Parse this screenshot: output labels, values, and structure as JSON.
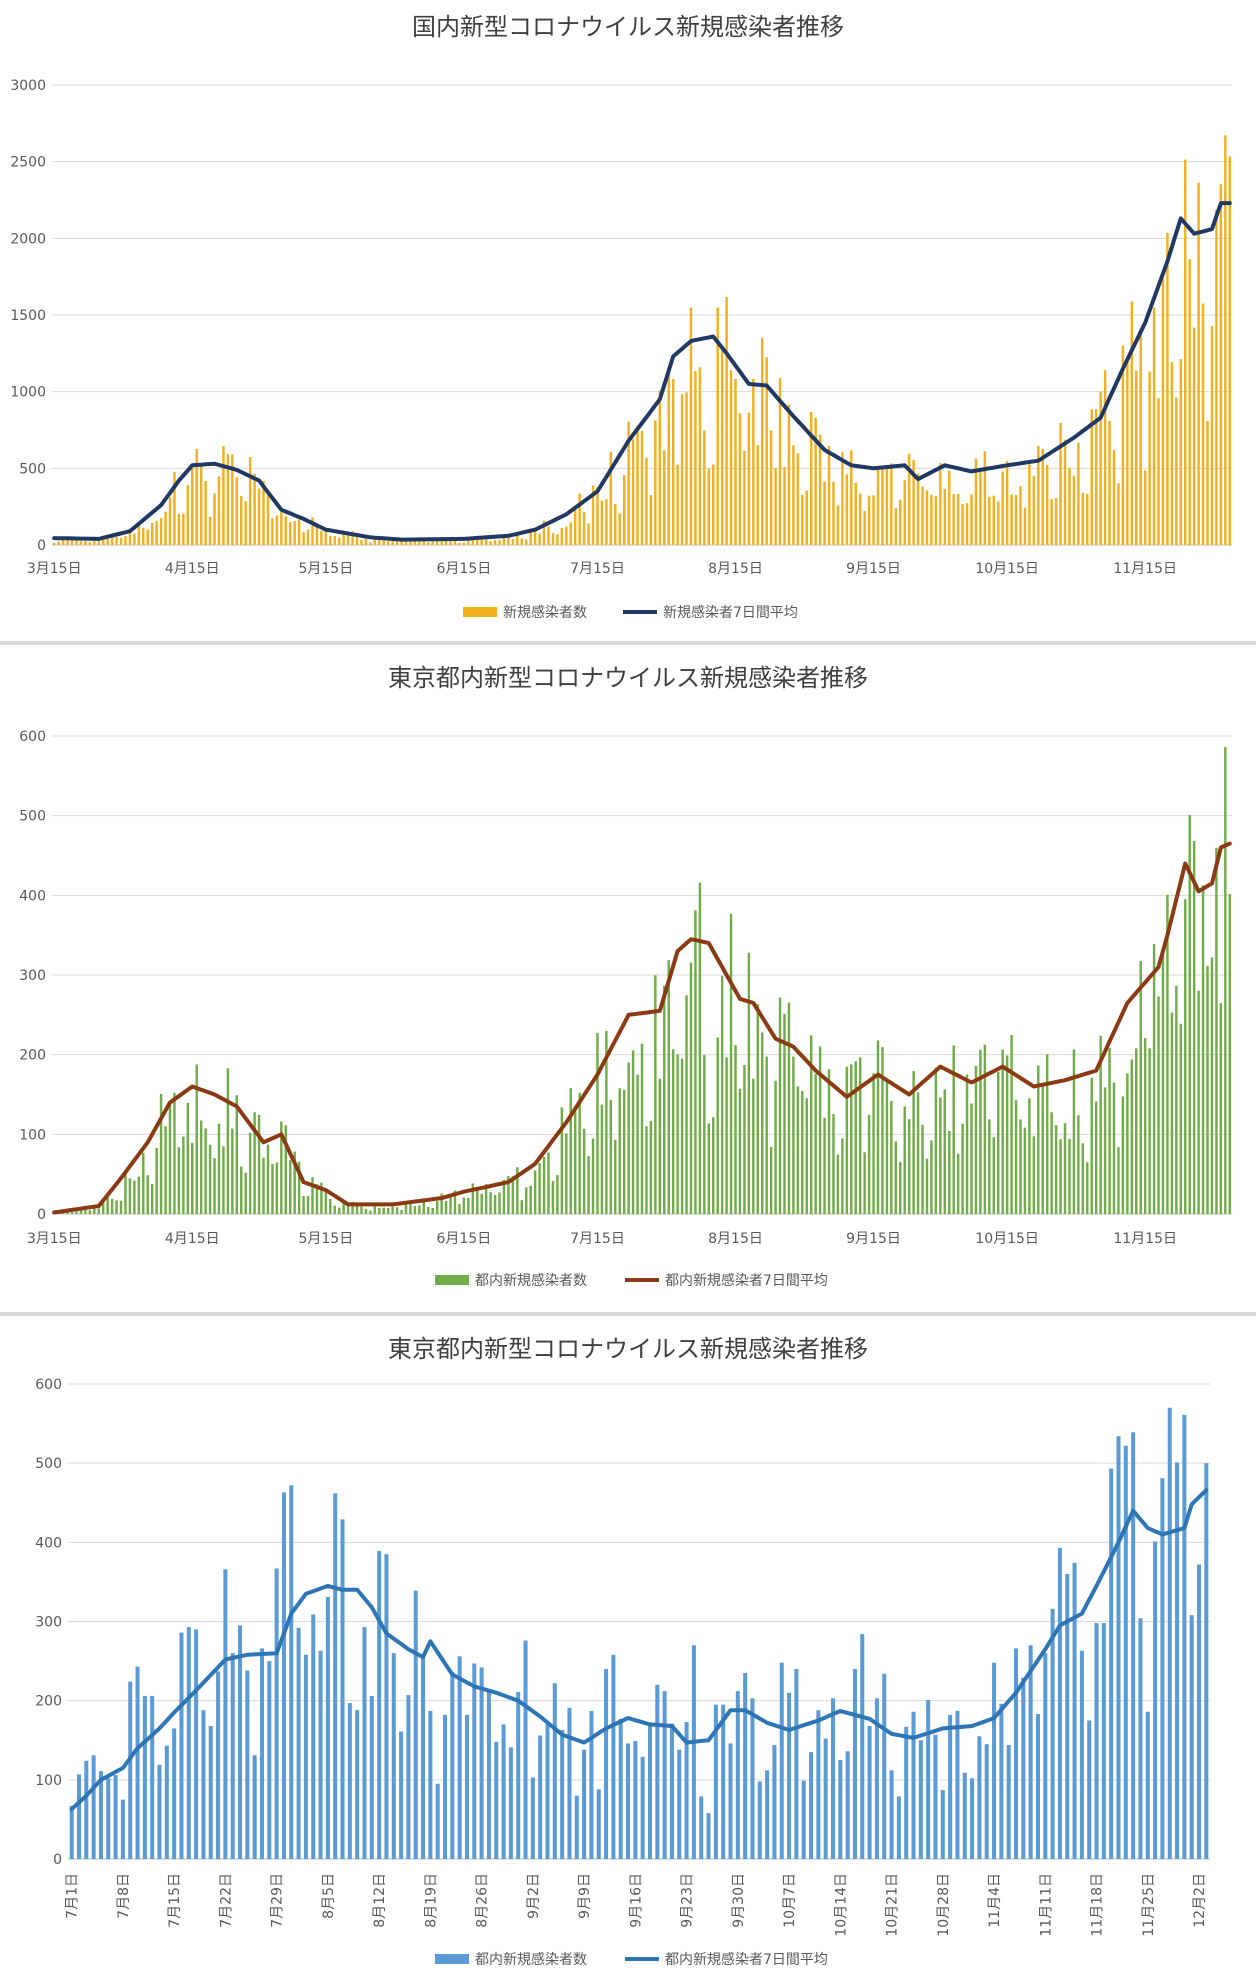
{
  "charts": [
    {
      "title": "国内新型コロナウイルス新規感染者推移",
      "legend": [
        "新規感染者数",
        "新規感染者7日間平均"
      ],
      "bar_color": "#F2B01E",
      "line_color": "#1F3864",
      "ylim": [
        0,
        3000
      ],
      "yticks": [
        0,
        500,
        1000,
        1500,
        2000,
        2500,
        3000
      ],
      "xticks": [
        "3月15日",
        "4月15日",
        "5月15日",
        "6月15日",
        "7月15日",
        "8月15日",
        "9月15日",
        "10月15日",
        "11月15日"
      ]
    },
    {
      "title": "東京都内新型コロナウイルス新規感染者推移",
      "legend": [
        "都内新規感染者数",
        "都内新規感染者7日間平均"
      ],
      "bar_color": "#70AD47",
      "line_color": "#8B3A14",
      "ylim": [
        0,
        600
      ],
      "yticks": [
        0,
        100,
        200,
        300,
        400,
        500,
        600
      ],
      "xticks": [
        "3月15日",
        "4月15日",
        "5月15日",
        "6月15日",
        "7月15日",
        "8月15日",
        "9月15日",
        "10月15日",
        "11月15日"
      ]
    },
    {
      "title": "東京都内新型コロナウイルス新規感染者推移",
      "legend": [
        "都内新規感染者数",
        "都内新規感染者7日間平均"
      ],
      "bar_color": "#5B9BD5",
      "line_color": "#2E75B6",
      "ylim": [
        0,
        600
      ],
      "yticks": [
        0,
        100,
        200,
        300,
        400,
        500,
        600
      ],
      "xticks": [
        "7月1日",
        "7月8日",
        "7月15日",
        "7月22日",
        "7月29日",
        "8月5日",
        "8月12日",
        "8月19日",
        "8月26日",
        "9月2日",
        "9月9日",
        "9月16日",
        "9月23日",
        "9月30日",
        "10月7日",
        "10月14日",
        "10月21日",
        "10月28日",
        "11月4日",
        "11月11日",
        "11月18日",
        "11月25日",
        "12月2日"
      ]
    }
  ],
  "chart_data": [
    {
      "type": "bar+line",
      "title": "国内新型コロナウイルス新規感染者推移",
      "ylim": [
        0,
        3000
      ],
      "x_range": [
        "3月15日",
        "12月4日"
      ],
      "series": [
        {
          "name": "新規感染者数",
          "type": "bar",
          "note": "daily values"
        },
        {
          "name": "新規感染者7日間平均",
          "type": "line",
          "points": [
            [
              "3月15日",
              45
            ],
            [
              "3月25日",
              40
            ],
            [
              "4月1日",
              90
            ],
            [
              "4月8日",
              260
            ],
            [
              "4月12日",
              420
            ],
            [
              "4月15日",
              520
            ],
            [
              "4月20日",
              530
            ],
            [
              "4月25日",
              490
            ],
            [
              "4月30日",
              420
            ],
            [
              "5月5日",
              230
            ],
            [
              "5月10日",
              170
            ],
            [
              "5月15日",
              100
            ],
            [
              "5月25日",
              50
            ],
            [
              "6月1日",
              35
            ],
            [
              "6月15日",
              40
            ],
            [
              "6月25日",
              60
            ],
            [
              "7月1日",
              100
            ],
            [
              "7月8日",
              200
            ],
            [
              "7月15日",
              350
            ],
            [
              "7月22日",
              680
            ],
            [
              "7月29日",
              950
            ],
            [
              "8月1日",
              1230
            ],
            [
              "8月5日",
              1330
            ],
            [
              "8月10日",
              1360
            ],
            [
              "8月13日",
              1250
            ],
            [
              "8月18日",
              1050
            ],
            [
              "8月22日",
              1040
            ],
            [
              "8月28日",
              840
            ],
            [
              "9月4日",
              620
            ],
            [
              "9月10日",
              520
            ],
            [
              "9月15日",
              500
            ],
            [
              "9月22日",
              520
            ],
            [
              "9月25日",
              430
            ],
            [
              "10月1日",
              520
            ],
            [
              "10月7日",
              480
            ],
            [
              "10月15日",
              520
            ],
            [
              "10月22日",
              550
            ],
            [
              "10月30日",
              700
            ],
            [
              "11月5日",
              830
            ],
            [
              "11月10日",
              1150
            ],
            [
              "11月15日",
              1450
            ],
            [
              "11月20日",
              1850
            ],
            [
              "11月23日",
              2130
            ],
            [
              "11月26日",
              2030
            ],
            [
              "11月30日",
              2060
            ],
            [
              "12月2日",
              2230
            ],
            [
              "12月4日",
              2230
            ]
          ]
        }
      ]
    },
    {
      "type": "bar+line",
      "title": "東京都内新型コロナウイルス新規感染者推移",
      "ylim": [
        0,
        600
      ],
      "x_range": [
        "3月15日",
        "12月4日"
      ],
      "series": [
        {
          "name": "都内新規感染者数",
          "type": "bar",
          "note": "daily values"
        },
        {
          "name": "都内新規感染者7日間平均",
          "type": "line",
          "points": [
            [
              "3月15日",
              2
            ],
            [
              "3月25日",
              10
            ],
            [
              "3月30日",
              45
            ],
            [
              "4月5日",
              90
            ],
            [
              "4月10日",
              140
            ],
            [
              "4月15日",
              160
            ],
            [
              "4月20日",
              150
            ],
            [
              "4月25日",
              135
            ],
            [
              "5月1日",
              90
            ],
            [
              "5月5日",
              100
            ],
            [
              "5月10日",
              40
            ],
            [
              "5月15日",
              30
            ],
            [
              "5月20日",
              12
            ],
            [
              "5月30日",
              12
            ],
            [
              "6月10日",
              20
            ],
            [
              "6月15日",
              28
            ],
            [
              "6月25日",
              40
            ],
            [
              "7月1日",
              63
            ],
            [
              "7月8日",
              115
            ],
            [
              "7月15日",
              175
            ],
            [
              "7月22日",
              250
            ],
            [
              "7月29日",
              255
            ],
            [
              "8月2日",
              330
            ],
            [
              "8月5日",
              345
            ],
            [
              "8月9日",
              340
            ],
            [
              "8月12日",
              310
            ],
            [
              "8月16日",
              270
            ],
            [
              "8月19日",
              265
            ],
            [
              "8月24日",
              220
            ],
            [
              "8月28日",
              210
            ],
            [
              "9月2日",
              180
            ],
            [
              "9月9日",
              147
            ],
            [
              "9月16日",
              175
            ],
            [
              "9月23日",
              150
            ],
            [
              "9月30日",
              185
            ],
            [
              "10月7日",
              165
            ],
            [
              "10月14日",
              185
            ],
            [
              "10月21日",
              160
            ],
            [
              "10月28日",
              168
            ],
            [
              "11月4日",
              180
            ],
            [
              "11月11日",
              265
            ],
            [
              "11月18日",
              310
            ],
            [
              "11月20日",
              350
            ],
            [
              "11月24日",
              440
            ],
            [
              "11月27日",
              405
            ],
            [
              "11月30日",
              415
            ],
            [
              "12月2日",
              460
            ],
            [
              "12月4日",
              465
            ]
          ]
        }
      ]
    },
    {
      "type": "bar+line",
      "title": "東京都内新型コロナウイルス新規感染者推移",
      "ylim": [
        0,
        600
      ],
      "x_range": [
        "7月1日",
        "12月3日"
      ],
      "series": [
        {
          "name": "都内新規感染者数",
          "type": "bar",
          "values": [
            67,
            107,
            124,
            131,
            111,
            102,
            106,
            75,
            224,
            243,
            206,
            206,
            119,
            143,
            165,
            286,
            293,
            290,
            188,
            168,
            237,
            366,
            260,
            295,
            238,
            131,
            266,
            250,
            367,
            463,
            472,
            292,
            258,
            309,
            263,
            331,
            462,
            429,
            197,
            188,
            293,
            206,
            389,
            385,
            260,
            161,
            207,
            339,
            258,
            187,
            95,
            182,
            236,
            256,
            182,
            247,
            242,
            212,
            148,
            170,
            141,
            211,
            276,
            103,
            156,
            170,
            222,
            163,
            191,
            80,
            138,
            187,
            88,
            240,
            258,
            177,
            146,
            149,
            129,
            168,
            220,
            212,
            171,
            138,
            173,
            270,
            79,
            58,
            195,
            195,
            146,
            212,
            235,
            203,
            98,
            112,
            144,
            248,
            210,
            240,
            99,
            135,
            188,
            152,
            203,
            125,
            136,
            240,
            284,
            168,
            203,
            234,
            112,
            79,
            167,
            186,
            150,
            201,
            157,
            87,
            182,
            187,
            109,
            102,
            155,
            145,
            248,
            196,
            144,
            266,
            229,
            270,
            183,
            260,
            316,
            393,
            360,
            374,
            263,
            175,
            298,
            298,
            493,
            534,
            522,
            539,
            304,
            186,
            401,
            481,
            570,
            501,
            561,
            308,
            372,
            500,
            533
          ]
        },
        {
          "name": "都内新規感染者7日間平均",
          "type": "line",
          "points": [
            [
              "7月1日",
              63
            ],
            [
              "7月3日",
              80
            ],
            [
              "7月5日",
              100
            ],
            [
              "7月8日",
              115
            ],
            [
              "7月10日",
              140
            ],
            [
              "7月13日",
              165
            ],
            [
              "7月15日",
              185
            ],
            [
              "7月18日",
              213
            ],
            [
              "7月22日",
              252
            ],
            [
              "7月25日",
              258
            ],
            [
              "7月29日",
              260
            ],
            [
              "7月31日",
              310
            ],
            [
              "8月2日",
              335
            ],
            [
              "8月5日",
              345
            ],
            [
              "8月7日",
              340
            ],
            [
              "8月9日",
              340
            ],
            [
              "8月11日",
              318
            ],
            [
              "8月13日",
              285
            ],
            [
              "8月16日",
              265
            ],
            [
              "8月18日",
              255
            ],
            [
              "8月19日",
              275
            ],
            [
              "8月22日",
              233
            ],
            [
              "8月25日",
              218
            ],
            [
              "8月28日",
              210
            ],
            [
              "8月31日",
              200
            ],
            [
              "9月3日",
              180
            ],
            [
              "9月6日",
              157
            ],
            [
              "9月9日",
              147
            ],
            [
              "9月12日",
              165
            ],
            [
              "9月15日",
              178
            ],
            [
              "9月18日",
              170
            ],
            [
              "9月21日",
              168
            ],
            [
              "9月23日",
              147
            ],
            [
              "9月26日",
              150
            ],
            [
              "9月29日",
              188
            ],
            [
              "10月1日",
              188
            ],
            [
              "10月4日",
              172
            ],
            [
              "10月7日",
              163
            ],
            [
              "10月11日",
              175
            ],
            [
              "10月14日",
              187
            ],
            [
              "10月18日",
              177
            ],
            [
              "10月21日",
              158
            ],
            [
              "10月24日",
              153
            ],
            [
              "10月28日",
              165
            ],
            [
              "11月1日",
              168
            ],
            [
              "11月4日",
              178
            ],
            [
              "11月7日",
              210
            ],
            [
              "11月11日",
              265
            ],
            [
              "11月13日",
              295
            ],
            [
              "11月16日",
              310
            ],
            [
              "11月18日",
              345
            ],
            [
              "11月21日",
              400
            ],
            [
              "11月23日",
              440
            ],
            [
              "11月25日",
              418
            ],
            [
              "11月27日",
              410
            ],
            [
              "11月30日",
              418
            ],
            [
              "12月1日",
              448
            ],
            [
              "12月3日",
              466
            ]
          ]
        }
      ]
    }
  ]
}
